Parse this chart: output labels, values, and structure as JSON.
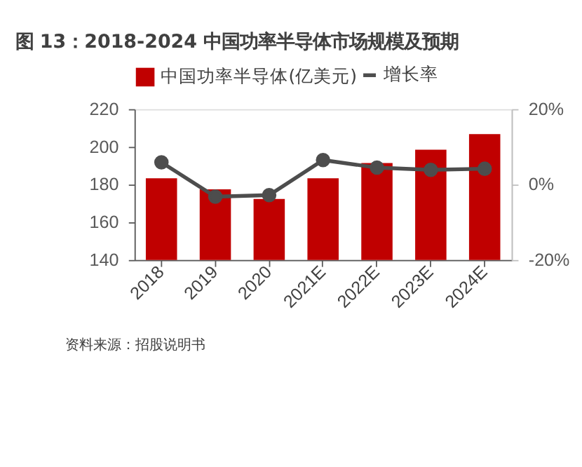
{
  "chart_data": {
    "type": "bar",
    "title": "图 13：2018-2024 中国功率半导体市场规模及预期",
    "categories": [
      "2018",
      "2019",
      "2020",
      "2021E",
      "2022E",
      "2023E",
      "2024E"
    ],
    "series": [
      {
        "name": "中国功率半导体(亿美元)",
        "color": "#c00000",
        "values": [
          183.3,
          177.5,
          172.4,
          183.3,
          191.4,
          198.5,
          206.8
        ]
      },
      {
        "name": "增长率",
        "type": "line",
        "axis": "y2",
        "color": "#4d4d4d",
        "values": [
          5.9,
          -3.2,
          -2.8,
          6.5,
          4.5,
          3.9,
          4.2
        ]
      }
    ],
    "ylim": [
      140,
      220
    ],
    "yticks": [
      140,
      160,
      180,
      200,
      220
    ],
    "y2lim": [
      -20,
      20
    ],
    "y2ticks": [
      {
        "value": -20,
        "label": "-20%"
      },
      {
        "value": 0,
        "label": "0%"
      },
      {
        "value": 20,
        "label": "20%"
      }
    ],
    "marker": "circle",
    "line_style": "solid",
    "grid": false,
    "legend": "top",
    "annotations": [
      "资料来源：招股说明书"
    ]
  }
}
